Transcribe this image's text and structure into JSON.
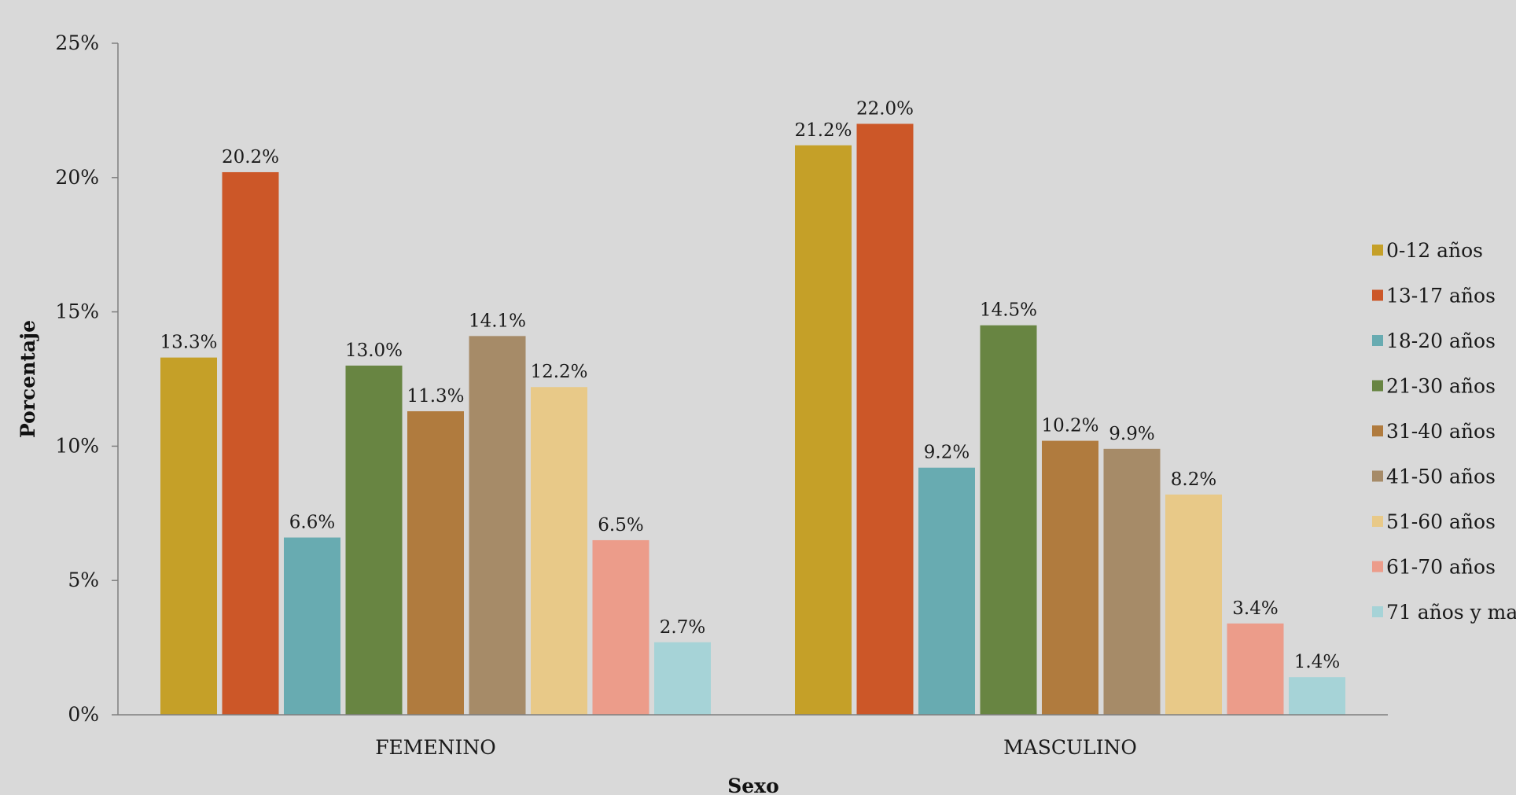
{
  "chart_data": {
    "type": "bar",
    "categories": [
      "FEMENINO",
      "MASCULINO"
    ],
    "xlabel": "Sexo",
    "ylabel": "Porcentaje",
    "ylim": [
      0,
      25
    ],
    "yticks": [
      "0%",
      "5%",
      "10%",
      "15%",
      "20%",
      "25%"
    ],
    "value_format": "percent_1dp",
    "legend_position": "right",
    "grid": false,
    "series": [
      {
        "name": "0-12 años",
        "color": "#c5a028",
        "values": [
          13.3,
          21.2
        ]
      },
      {
        "name": "13-17 años",
        "color": "#cc5728",
        "values": [
          20.2,
          22.0
        ]
      },
      {
        "name": "18-20 años",
        "color": "#68abb1",
        "values": [
          6.6,
          9.2
        ]
      },
      {
        "name": "21-30 años",
        "color": "#688542",
        "values": [
          13.0,
          14.5
        ]
      },
      {
        "name": "31-40 años",
        "color": "#b07b3e",
        "values": [
          11.3,
          10.2
        ]
      },
      {
        "name": "41-50 años",
        "color": "#a68b68",
        "values": [
          14.1,
          9.9
        ]
      },
      {
        "name": "51-60 años",
        "color": "#e8c988",
        "values": [
          12.2,
          8.2
        ]
      },
      {
        "name": "61-70 años",
        "color": "#ec9c8a",
        "values": [
          6.5,
          3.4
        ]
      },
      {
        "name": "71 años y ma",
        "color": "#a6d3d7",
        "values": [
          2.7,
          1.4
        ]
      }
    ],
    "data_labels": [
      [
        "13.3%",
        "21.2%"
      ],
      [
        "20.2%",
        "22.0%"
      ],
      [
        "6.6%",
        "9.2%"
      ],
      [
        "13.0%",
        "14.5%"
      ],
      [
        "11.3%",
        "10.2%"
      ],
      [
        "14.1%",
        "9.9%"
      ],
      [
        "12.2%",
        "8.2%"
      ],
      [
        "6.5%",
        "3.4%"
      ],
      [
        "2.7%",
        "1.4%"
      ]
    ]
  }
}
